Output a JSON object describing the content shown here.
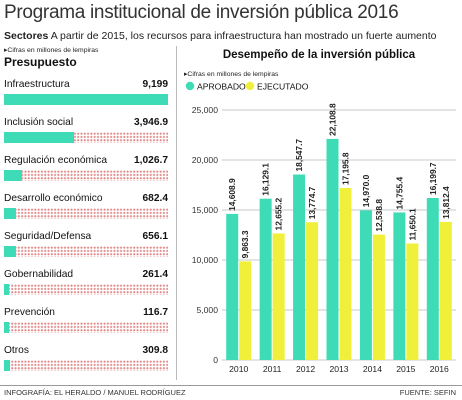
{
  "title": "Programa institucional de inversión pública 2016",
  "subtitle": {
    "bold": "Sectores",
    "text": " A partir de 2015, los recursos para infraestructura han mostrado un fuerte aumento"
  },
  "left_panel": {
    "note": "▸Cifras en millones de lempiras",
    "heading": "Presupuesto",
    "items": [
      {
        "label": "Infraestructura",
        "value_text": "9,199",
        "value": 9199
      },
      {
        "label": "Inclusión social",
        "value_text": "3,946.9",
        "value": 3946.9
      },
      {
        "label": "Regulación económica",
        "value_text": "1,026.7",
        "value": 1026.7
      },
      {
        "label": "Desarrollo económico",
        "value_text": "682.4",
        "value": 682.4
      },
      {
        "label": "Seguridad/Defensa",
        "value_text": "656.1",
        "value": 656.1
      },
      {
        "label": "Gobernabilidad",
        "value_text": "261.4",
        "value": 261.4
      },
      {
        "label": "Prevención",
        "value_text": "116.7",
        "value": 116.7
      },
      {
        "label": "Otros",
        "value_text": "309.8",
        "value": 309.8
      }
    ]
  },
  "chart_data": [
    {
      "type": "bar",
      "title": "Presupuesto",
      "note": "Cifras en millones de lempiras",
      "categories": [
        "Infraestructura",
        "Inclusión social",
        "Regulación económica",
        "Desarrollo económico",
        "Seguridad/Defensa",
        "Gobernabilidad",
        "Prevención",
        "Otros"
      ],
      "values": [
        9199,
        3946.9,
        1026.7,
        682.4,
        656.1,
        261.4,
        116.7,
        309.8
      ]
    },
    {
      "type": "bar",
      "title": "Desempeño de la inversión pública",
      "note": "▸Cifras en millones de lempiras",
      "categories": [
        "2010",
        "2011",
        "2012",
        "2013",
        "2014",
        "2015",
        "2016"
      ],
      "series": [
        {
          "name": "APROBADO",
          "color": "#3ddcb6",
          "values": [
            14608.9,
            16129.1,
            18547.7,
            22108.8,
            14970.0,
            14755.4,
            16199.7
          ],
          "labels": [
            "14,608.9",
            "16,129.1",
            "18,547.7",
            "22,108.8",
            "14,970.0",
            "14,755.4",
            "16,199.7"
          ]
        },
        {
          "name": "EJECUTADO",
          "color": "#f0f03a",
          "values": [
            9863.3,
            12655.2,
            13774.7,
            17195.8,
            12538.8,
            11650.1,
            13812.4
          ],
          "labels": [
            "9,863.3",
            "12,655.2",
            "13,774.7",
            "17,195.8",
            "12,538.8",
            "11,650.1",
            "13,812.4"
          ]
        }
      ],
      "yticks": [
        "25,000",
        "20,000",
        "15,000",
        "10,000",
        "5,000",
        "0"
      ],
      "ytick_values": [
        25000,
        20000,
        15000,
        10000,
        5000,
        0
      ],
      "ylim": [
        0,
        25000
      ],
      "grid": true,
      "legend_position": "top-left"
    }
  ],
  "footer": {
    "left": "INFOGRAFÍA: EL HERALDO / MANUEL RODRÍGUEZ",
    "right": "FUENTE: SEFIN"
  }
}
